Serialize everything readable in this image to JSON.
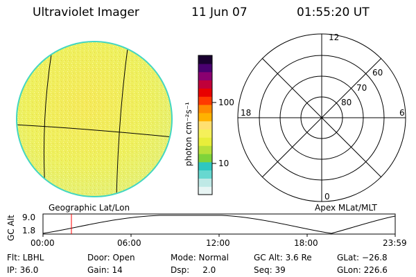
{
  "header": {
    "instrument": "Ultraviolet Imager",
    "date": "11 Jun 07",
    "time": "01:55:20 UT"
  },
  "colorbar": {
    "unit_label": "photon cm⁻²s⁻¹",
    "ticks": [
      "100",
      "10"
    ],
    "colors": [
      "#e8f5f4",
      "#bfe9e6",
      "#67d8d0",
      "#2ec7c1",
      "#7fd33a",
      "#b8e03a",
      "#e8ee3a",
      "#f5f05a",
      "#ffe070",
      "#ffb200",
      "#ff8a00",
      "#ff3a00",
      "#e80000",
      "#c0003a",
      "#8a0070",
      "#4a0070",
      "#1a0030"
    ]
  },
  "polar_plot": {
    "rings": [
      "80",
      "70",
      "60"
    ],
    "mlt_labels": {
      "top": "12",
      "right": "6",
      "bottom": "0",
      "left": "18"
    }
  },
  "labels": {
    "geographic": "Geographic Lat/Lon",
    "apex": "Apex MLat/MLT"
  },
  "timeline": {
    "ylabel": "GC Alt",
    "y_max": "9.0",
    "y_min": "1.8",
    "x_ticks": [
      "00:00",
      "06:00",
      "12:00",
      "18:00",
      "23:59"
    ],
    "marker_time": "01:55"
  },
  "status": {
    "flt": "Flt: LBHL",
    "ip": "IP: 36.0",
    "door": "Door: Open",
    "gain": "Gain: 14",
    "mode": "Mode: Normal",
    "dsp": "Dsp:     2.0",
    "gcalt": "GC Alt: 3.6 Re",
    "seq": "Seq: 39",
    "glat": "GLat: −26.8",
    "glon": "GLon: 226.6"
  },
  "colors": {
    "disk_fill": "#eeee5c",
    "disk_edge": "#42d6c2",
    "grid": "#000000",
    "marker": "#ff0000"
  }
}
